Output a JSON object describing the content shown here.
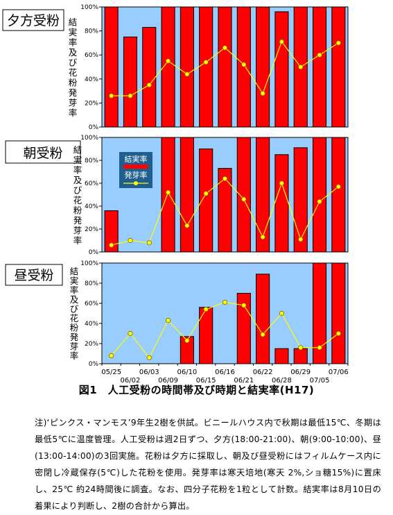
{
  "figure_caption": "図1　人工受粉の時間帯及び時期と結実率(H17)",
  "note": "注)‘ピンクス・マンモス’9年生2樹を供試。ビニールハウス内で秋期は最低15℃、冬期は最低5℃に温度管理。人工受粉は週2日ずつ、夕方(18:00-21:00)、朝(9:00-10:00)、昼(13:00-14:00)の3回実施。花粉は夕方に採取し、朝及び昼受粉にはフィルムケース内に密閉し冷蔵保存(5℃)した花粉を使用。発芽率は寒天培地(寒天 2%,ショ糖15%)に置床し、25℃ 約24時間後に調査。なお、四分子花粉を1粒として計数。結実率は8月10日の着果により判断し、2樹の合計から算出。",
  "colors": {
    "plot_bg": "#99ccff",
    "bar": "#ff0000",
    "line": "#ffff00",
    "legend_bg": "#1f5f8f"
  },
  "chart_data": [
    {
      "type": "bar",
      "title": "夕方受粉",
      "ylabel": "結実率及び花粉発芽率",
      "ylim": [
        0,
        100
      ],
      "yticks": [
        "0%",
        "20%",
        "40%",
        "60%",
        "80%",
        "100%"
      ],
      "categories": [
        "05/25",
        "06/02",
        "06/03",
        "06/09",
        "06/10",
        "06/15",
        "06/16",
        "06/21",
        "06/22",
        "06/28",
        "06/29",
        "07/05",
        "07/06"
      ],
      "series": [
        {
          "name": "結実率",
          "type": "bar",
          "values": [
            100,
            75,
            83,
            100,
            100,
            100,
            100,
            100,
            100,
            96,
            100,
            100,
            100
          ]
        },
        {
          "name": "発芽率",
          "type": "line",
          "values": [
            26,
            26,
            35,
            55,
            44,
            54,
            66,
            52,
            28,
            71,
            50,
            60,
            70
          ]
        }
      ]
    },
    {
      "type": "bar",
      "title": "朝受粉",
      "ylabel": "結実率及び花粉発芽率",
      "ylim": [
        0,
        100
      ],
      "yticks": [
        "0%",
        "20%",
        "40%",
        "60%",
        "80%",
        "100%"
      ],
      "legend": [
        "結実率",
        "発芽率"
      ],
      "legend_position": "top-left",
      "categories": [
        "05/25",
        "06/02",
        "06/03",
        "06/09",
        "06/10",
        "06/15",
        "06/16",
        "06/21",
        "06/22",
        "06/28",
        "06/29",
        "07/05",
        "07/06"
      ],
      "series": [
        {
          "name": "結実率",
          "type": "bar",
          "values": [
            36,
            0,
            0,
            100,
            100,
            90,
            73,
            100,
            100,
            85,
            91,
            100,
            100
          ]
        },
        {
          "name": "発芽率",
          "type": "line",
          "values": [
            6,
            10,
            8,
            52,
            23,
            51,
            64,
            46,
            13,
            60,
            11,
            44,
            57
          ]
        }
      ]
    },
    {
      "type": "bar",
      "title": "昼受粉",
      "ylabel": "結実率及び花粉発芽率",
      "ylim": [
        0,
        100
      ],
      "yticks": [
        "0%",
        "20%",
        "40%",
        "60%",
        "80%",
        "100%"
      ],
      "categories": [
        "05/25",
        "06/02",
        "06/03",
        "06/09",
        "06/10",
        "06/15",
        "06/16",
        "06/21",
        "06/22",
        "06/28",
        "06/29",
        "07/05",
        "07/06"
      ],
      "xticks_top": [
        "05/25",
        "06/03",
        "06/10",
        "06/16",
        "06/22",
        "06/29",
        "07/06"
      ],
      "xticks_bottom": [
        "06/02",
        "06/09",
        "06/15",
        "06/21",
        "06/28",
        "07/05"
      ],
      "series": [
        {
          "name": "結実率",
          "type": "bar",
          "values": [
            0,
            0,
            0,
            0,
            27,
            56,
            0,
            70,
            89,
            15,
            15,
            100,
            100
          ]
        },
        {
          "name": "発芽率",
          "type": "line",
          "values": [
            8,
            30,
            6,
            43,
            23,
            54,
            61,
            58,
            29,
            50,
            16,
            16,
            30
          ]
        }
      ]
    }
  ]
}
